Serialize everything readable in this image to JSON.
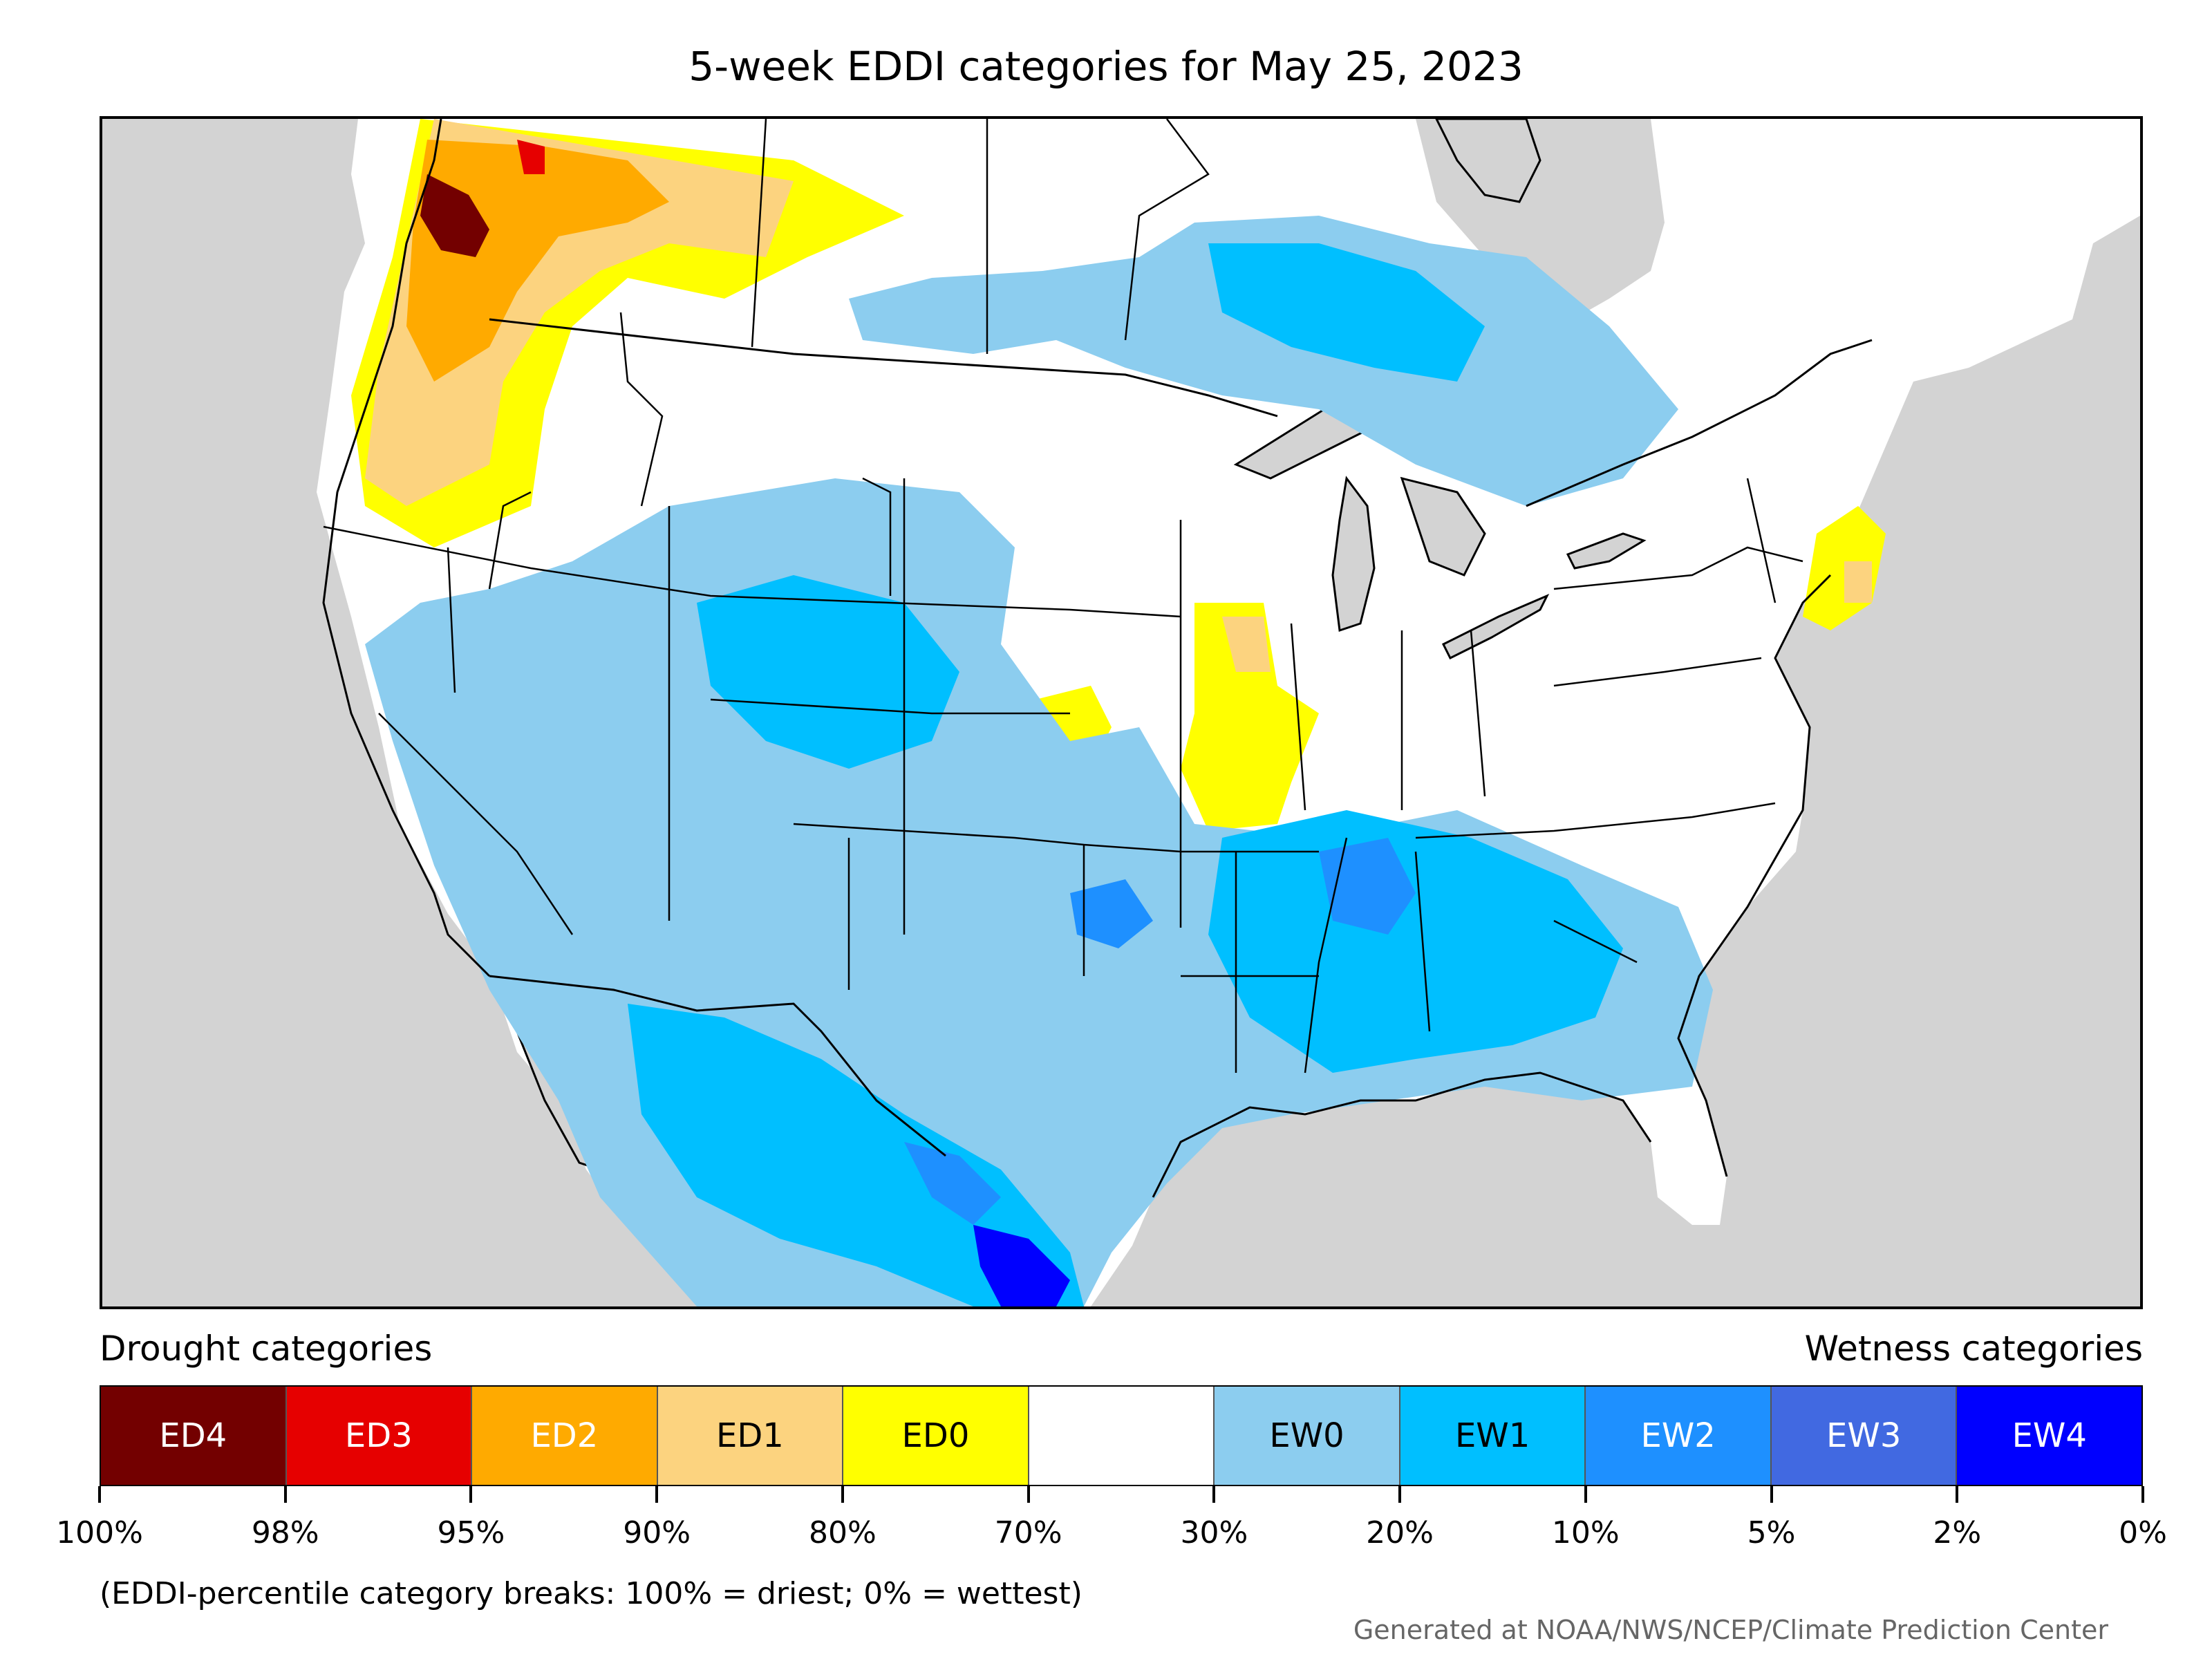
{
  "title": "5-week EDDI categories for May 25, 2023",
  "legend": {
    "drought_heading": "Drought categories",
    "wetness_heading": "Wetness categories",
    "categories": [
      {
        "label": "ED4",
        "color": "#730000",
        "text_color": "#ffffff"
      },
      {
        "label": "ED3",
        "color": "#e60000",
        "text_color": "#ffffff"
      },
      {
        "label": "ED2",
        "color": "#ffaa00",
        "text_color": "#ffffff"
      },
      {
        "label": "ED1",
        "color": "#fcd37f",
        "text_color": "#000000"
      },
      {
        "label": "ED0",
        "color": "#ffff00",
        "text_color": "#000000"
      },
      {
        "label": "",
        "color": "#ffffff",
        "text_color": "#000000"
      },
      {
        "label": "EW0",
        "color": "#8ccdef",
        "text_color": "#000000"
      },
      {
        "label": "EW1",
        "color": "#00bfff",
        "text_color": "#000000"
      },
      {
        "label": "EW2",
        "color": "#1e90ff",
        "text_color": "#ffffff"
      },
      {
        "label": "EW3",
        "color": "#4169e1",
        "text_color": "#ffffff"
      },
      {
        "label": "EW4",
        "color": "#0000ff",
        "text_color": "#ffffff"
      }
    ],
    "ticks": [
      "100%",
      "98%",
      "95%",
      "90%",
      "80%",
      "70%",
      "30%",
      "20%",
      "10%",
      "5%",
      "2%",
      "0%"
    ]
  },
  "footnote": "(EDDI-percentile category breaks: 100% = driest; 0% = wettest)",
  "credit": "Generated at NOAA/NWS/NCEP/Climate Prediction Center",
  "map": {
    "background_color": "#d3d3d3",
    "land_color": "#ffffff",
    "boundary_color": "#000000"
  }
}
